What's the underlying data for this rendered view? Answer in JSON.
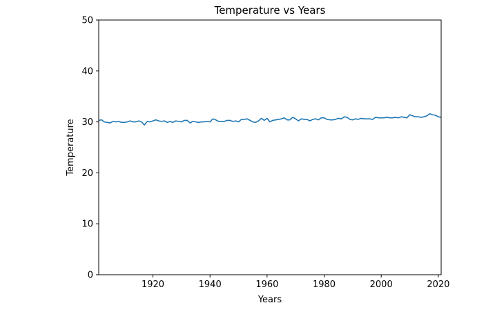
{
  "chart_data": {
    "type": "line",
    "title": "Temperature vs Years",
    "xlabel": "Years",
    "ylabel": "Temperature",
    "xlim": [
      1901,
      2021
    ],
    "ylim": [
      0,
      50
    ],
    "xticks": [
      1920,
      1940,
      1960,
      1980,
      2000,
      2020
    ],
    "yticks": [
      0,
      10,
      20,
      30,
      40,
      50
    ],
    "grid": false,
    "series": [
      {
        "name": "Temperature",
        "color": "#1f77b4",
        "x": [
          1901,
          1902,
          1903,
          1904,
          1905,
          1906,
          1907,
          1908,
          1909,
          1910,
          1911,
          1912,
          1913,
          1914,
          1915,
          1916,
          1917,
          1918,
          1919,
          1920,
          1921,
          1922,
          1923,
          1924,
          1925,
          1926,
          1927,
          1928,
          1929,
          1930,
          1931,
          1932,
          1933,
          1934,
          1935,
          1936,
          1937,
          1938,
          1939,
          1940,
          1941,
          1942,
          1943,
          1944,
          1945,
          1946,
          1947,
          1948,
          1949,
          1950,
          1951,
          1952,
          1953,
          1954,
          1955,
          1956,
          1957,
          1958,
          1959,
          1960,
          1961,
          1962,
          1963,
          1964,
          1965,
          1966,
          1967,
          1968,
          1969,
          1970,
          1971,
          1972,
          1973,
          1974,
          1975,
          1976,
          1977,
          1978,
          1979,
          1980,
          1981,
          1982,
          1983,
          1984,
          1985,
          1986,
          1987,
          1988,
          1989,
          1990,
          1991,
          1992,
          1993,
          1994,
          1995,
          1996,
          1997,
          1998,
          1999,
          2000,
          2001,
          2002,
          2003,
          2004,
          2005,
          2006,
          2007,
          2008,
          2009,
          2010,
          2011,
          2012,
          2013,
          2014,
          2015,
          2016,
          2017,
          2018,
          2019,
          2020,
          2021
        ],
        "values": [
          30.3,
          30.4,
          30.0,
          29.9,
          29.8,
          30.1,
          30.0,
          30.1,
          29.9,
          29.9,
          30.0,
          30.2,
          30.0,
          30.0,
          30.2,
          30.0,
          29.4,
          30.1,
          30.0,
          30.2,
          30.4,
          30.2,
          30.1,
          30.2,
          29.9,
          30.1,
          29.9,
          30.2,
          30.1,
          30.0,
          30.3,
          30.3,
          29.8,
          30.1,
          30.0,
          29.9,
          30.0,
          30.0,
          30.1,
          30.0,
          30.6,
          30.4,
          30.1,
          30.1,
          30.1,
          30.3,
          30.3,
          30.1,
          30.2,
          30.0,
          30.5,
          30.5,
          30.6,
          30.3,
          30.0,
          29.9,
          30.2,
          30.7,
          30.3,
          30.7,
          30.0,
          30.3,
          30.4,
          30.5,
          30.6,
          30.8,
          30.4,
          30.4,
          30.9,
          30.6,
          30.2,
          30.6,
          30.5,
          30.5,
          30.2,
          30.5,
          30.6,
          30.4,
          30.8,
          30.8,
          30.5,
          30.4,
          30.4,
          30.5,
          30.7,
          30.6,
          31.0,
          30.9,
          30.5,
          30.4,
          30.6,
          30.5,
          30.7,
          30.6,
          30.6,
          30.6,
          30.5,
          30.9,
          30.8,
          30.8,
          30.8,
          30.9,
          30.8,
          30.8,
          30.9,
          30.8,
          31.0,
          30.9,
          30.8,
          31.4,
          31.2,
          31.0,
          31.0,
          30.9,
          31.0,
          31.2,
          31.6,
          31.4,
          31.3,
          31.0,
          30.9
        ]
      }
    ]
  }
}
